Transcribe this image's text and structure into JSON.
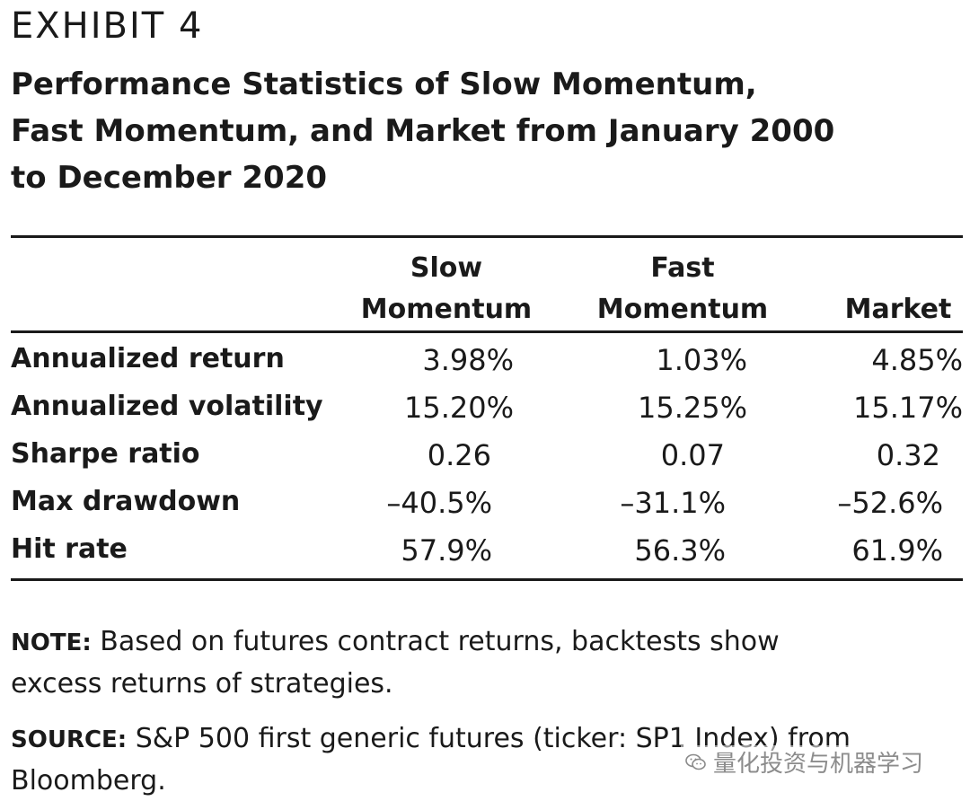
{
  "exhibit": {
    "label": "EXHIBIT 4",
    "title_lines": [
      "Performance Statistics of Slow Momentum,",
      "Fast Momentum, and Market from January 2000",
      "to December 2020"
    ]
  },
  "table": {
    "columns": [
      {
        "line1": "Slow",
        "line2": "Momentum"
      },
      {
        "line1": "Fast",
        "line2": "Momentum"
      },
      {
        "line1": "",
        "line2": "Market"
      }
    ],
    "rows": [
      {
        "label": "Annualized return",
        "values": [
          "3.98%",
          "1.03%",
          "4.85%"
        ]
      },
      {
        "label": "Annualized volatility",
        "values": [
          "15.20%",
          "15.25%",
          "15.17%"
        ]
      },
      {
        "label": "Sharpe ratio",
        "values": [
          "0.26",
          "0.07",
          "0.32"
        ]
      },
      {
        "label": "Max drawdown",
        "values": [
          "–40.5%",
          "–31.1%",
          "–52.6%"
        ]
      },
      {
        "label": "Hit rate",
        "values": [
          "57.9%",
          "56.3%",
          "61.9%"
        ]
      }
    ]
  },
  "notes": {
    "note_tag": "NOTE:",
    "note_text": " Based on futures contract returns, backtests show",
    "note_text2": "excess returns of strategies.",
    "source_tag": "SOURCE:",
    "source_text": " S&P 500 first generic futures (ticker: SP1 Index) from",
    "source_text2": "Bloomberg."
  },
  "watermark": {
    "text": "量化投资与机器学习",
    "icon": "wechat-icon"
  }
}
